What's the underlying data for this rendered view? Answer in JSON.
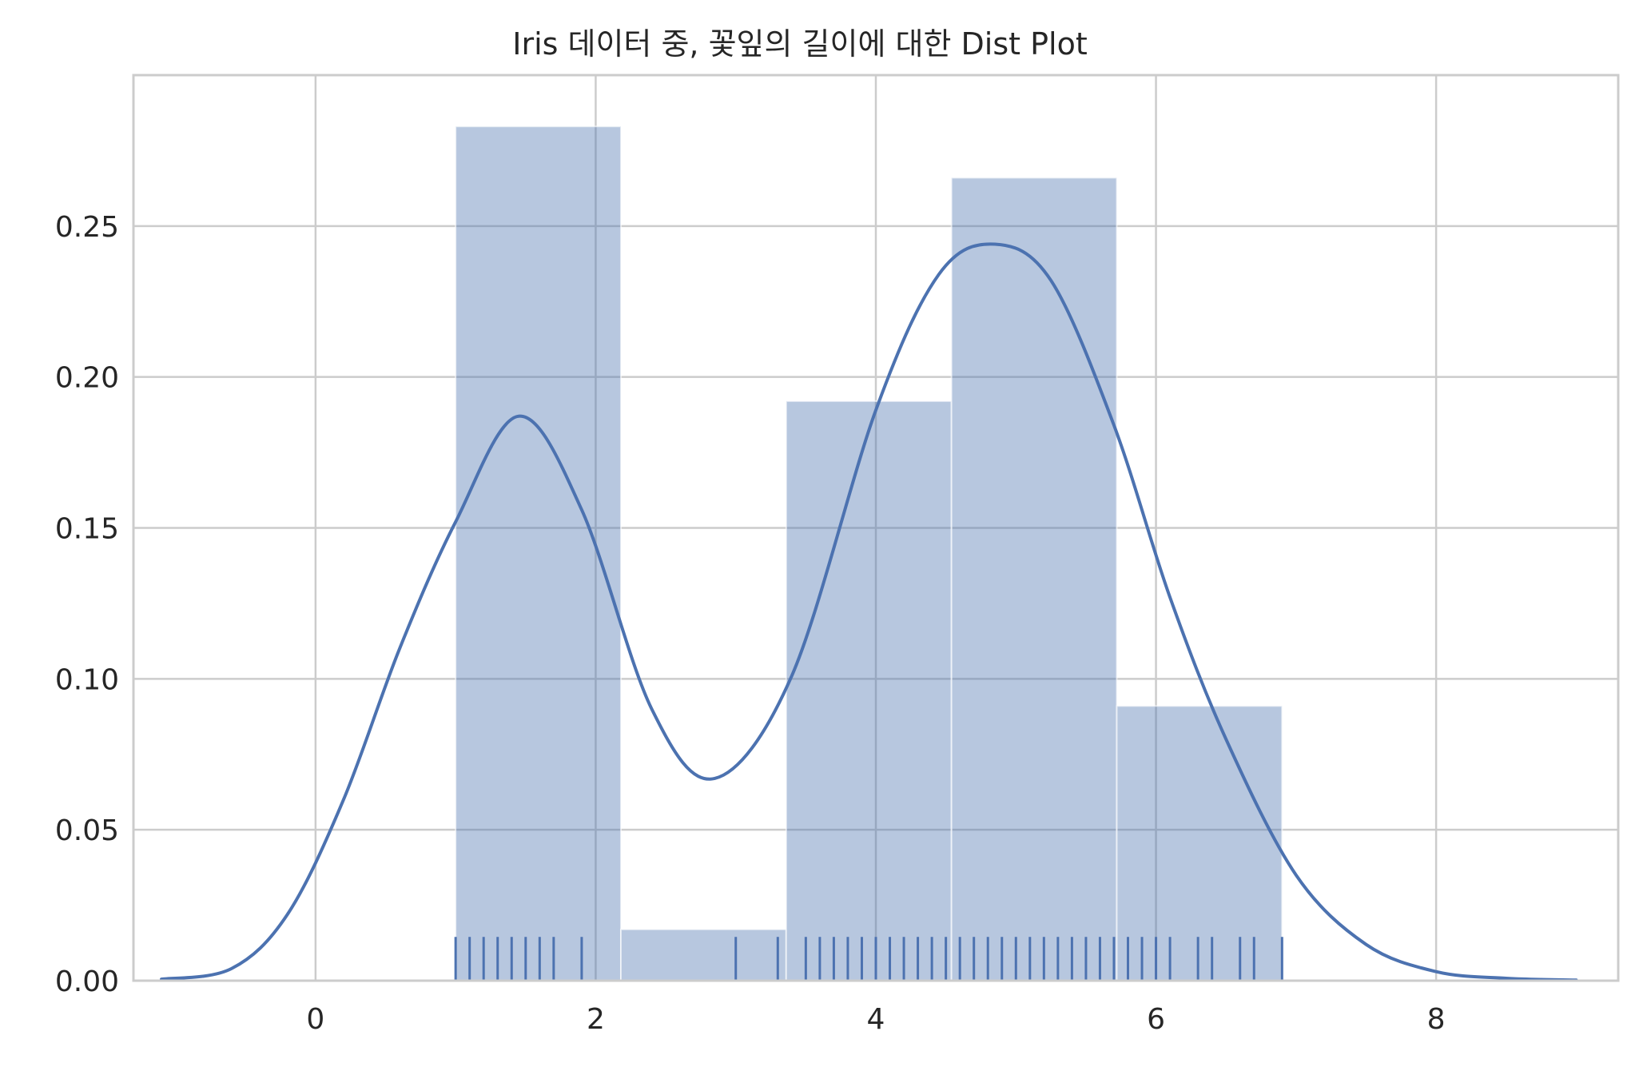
{
  "chart_data": {
    "type": "histogram",
    "title": "Iris 데이터 중, 꽃잎의 길이에 대한 Dist Plot",
    "xlabel": "",
    "ylabel": "",
    "xlim": [
      -1.3,
      9.3
    ],
    "ylim": [
      0,
      0.3
    ],
    "x_ticks": [
      0,
      2,
      4,
      6,
      8
    ],
    "x_tick_labels": [
      "0",
      "2",
      "4",
      "6",
      "8"
    ],
    "y_ticks": [
      0,
      0.05,
      0.1,
      0.15,
      0.2,
      0.25
    ],
    "y_tick_labels": [
      "0.00",
      "0.05",
      "0.10",
      "0.15",
      "0.20",
      "0.25"
    ],
    "grid": true,
    "colors": {
      "bar_fill": "#4c72b0",
      "bar_opacity": 0.4,
      "kde_line": "#4c72b0",
      "rug": "#4c72b0",
      "grid": "#cccccc",
      "text": "#262626"
    },
    "histogram": {
      "bin_edges": [
        1.0,
        2.18,
        3.36,
        4.54,
        5.72,
        6.9
      ],
      "densities": [
        0.283,
        0.017,
        0.192,
        0.266,
        0.091
      ]
    },
    "kde": {
      "x": [
        -1.1,
        -0.6,
        -0.2,
        0.2,
        0.6,
        1.0,
        1.45,
        1.9,
        2.4,
        2.85,
        3.4,
        4.0,
        4.45,
        4.85,
        5.25,
        5.7,
        6.1,
        6.5,
        7.0,
        7.5,
        8.0,
        8.5,
        9.0
      ],
      "y": [
        0.0005,
        0.004,
        0.022,
        0.06,
        0.11,
        0.152,
        0.187,
        0.156,
        0.09,
        0.067,
        0.101,
        0.189,
        0.234,
        0.244,
        0.232,
        0.184,
        0.127,
        0.08,
        0.035,
        0.012,
        0.003,
        0.0008,
        0.0002
      ]
    },
    "rug": [
      1.0,
      1.1,
      1.2,
      1.3,
      1.4,
      1.5,
      1.6,
      1.7,
      1.9,
      3.0,
      3.3,
      3.5,
      3.6,
      3.7,
      3.8,
      3.9,
      4.0,
      4.1,
      4.2,
      4.3,
      4.4,
      4.5,
      4.6,
      4.7,
      4.8,
      4.9,
      5.0,
      5.1,
      5.2,
      5.3,
      5.4,
      5.5,
      5.6,
      5.7,
      5.8,
      5.9,
      6.0,
      6.1,
      6.3,
      6.4,
      6.6,
      6.7,
      6.9
    ],
    "rug_height": 0.0145
  }
}
